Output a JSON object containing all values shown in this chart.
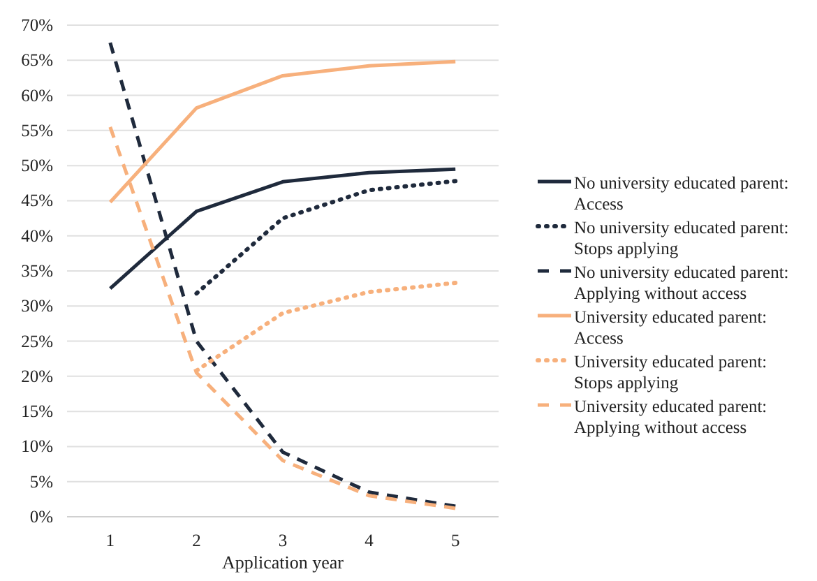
{
  "chart_data": {
    "type": "line",
    "xlabel": "Application year",
    "categories": [
      "1",
      "2",
      "3",
      "4",
      "5"
    ],
    "ylim": [
      0,
      70
    ],
    "yticks": [
      {
        "value": 0,
        "label": "0%"
      },
      {
        "value": 5,
        "label": "5%"
      },
      {
        "value": 10,
        "label": "10%"
      },
      {
        "value": 15,
        "label": "15%"
      },
      {
        "value": 20,
        "label": "20%"
      },
      {
        "value": 25,
        "label": "25%"
      },
      {
        "value": 30,
        "label": "30%"
      },
      {
        "value": 35,
        "label": "35%"
      },
      {
        "value": 40,
        "label": "40%"
      },
      {
        "value": 45,
        "label": "45%"
      },
      {
        "value": 50,
        "label": "50%"
      },
      {
        "value": 55,
        "label": "55%"
      },
      {
        "value": 60,
        "label": "60%"
      },
      {
        "value": 65,
        "label": "65%"
      },
      {
        "value": 70,
        "label": "70%"
      }
    ],
    "grid": "y",
    "legend": "right",
    "marker": "none",
    "series": [
      {
        "name": "No university educated parent: Access",
        "color": "#1f2a3c",
        "line_style": "solid",
        "values": [
          32.5,
          43.5,
          47.7,
          49.0,
          49.5
        ]
      },
      {
        "name": "No university educated parent: Stops applying",
        "color": "#1f2a3c",
        "line_style": "dotted",
        "values": [
          null,
          31.8,
          42.5,
          46.5,
          47.8
        ]
      },
      {
        "name": "No university educated parent: Applying without access",
        "color": "#1f2a3c",
        "line_style": "dashed",
        "values": [
          67.5,
          25,
          9.2,
          3.5,
          1.5
        ]
      },
      {
        "name": "University educated parent: Access",
        "color": "#f7b07c",
        "line_style": "solid",
        "values": [
          44.8,
          58.2,
          62.8,
          64.2,
          64.8
        ]
      },
      {
        "name": "University educated parent: Stops applying",
        "color": "#f7b07c",
        "line_style": "dotted",
        "values": [
          null,
          20.8,
          29,
          32,
          33.3
        ]
      },
      {
        "name": "University educated parent: Applying without access",
        "color": "#f7b07c",
        "line_style": "dashed",
        "values": [
          55.5,
          20.5,
          8,
          3,
          1.2
        ]
      }
    ]
  }
}
